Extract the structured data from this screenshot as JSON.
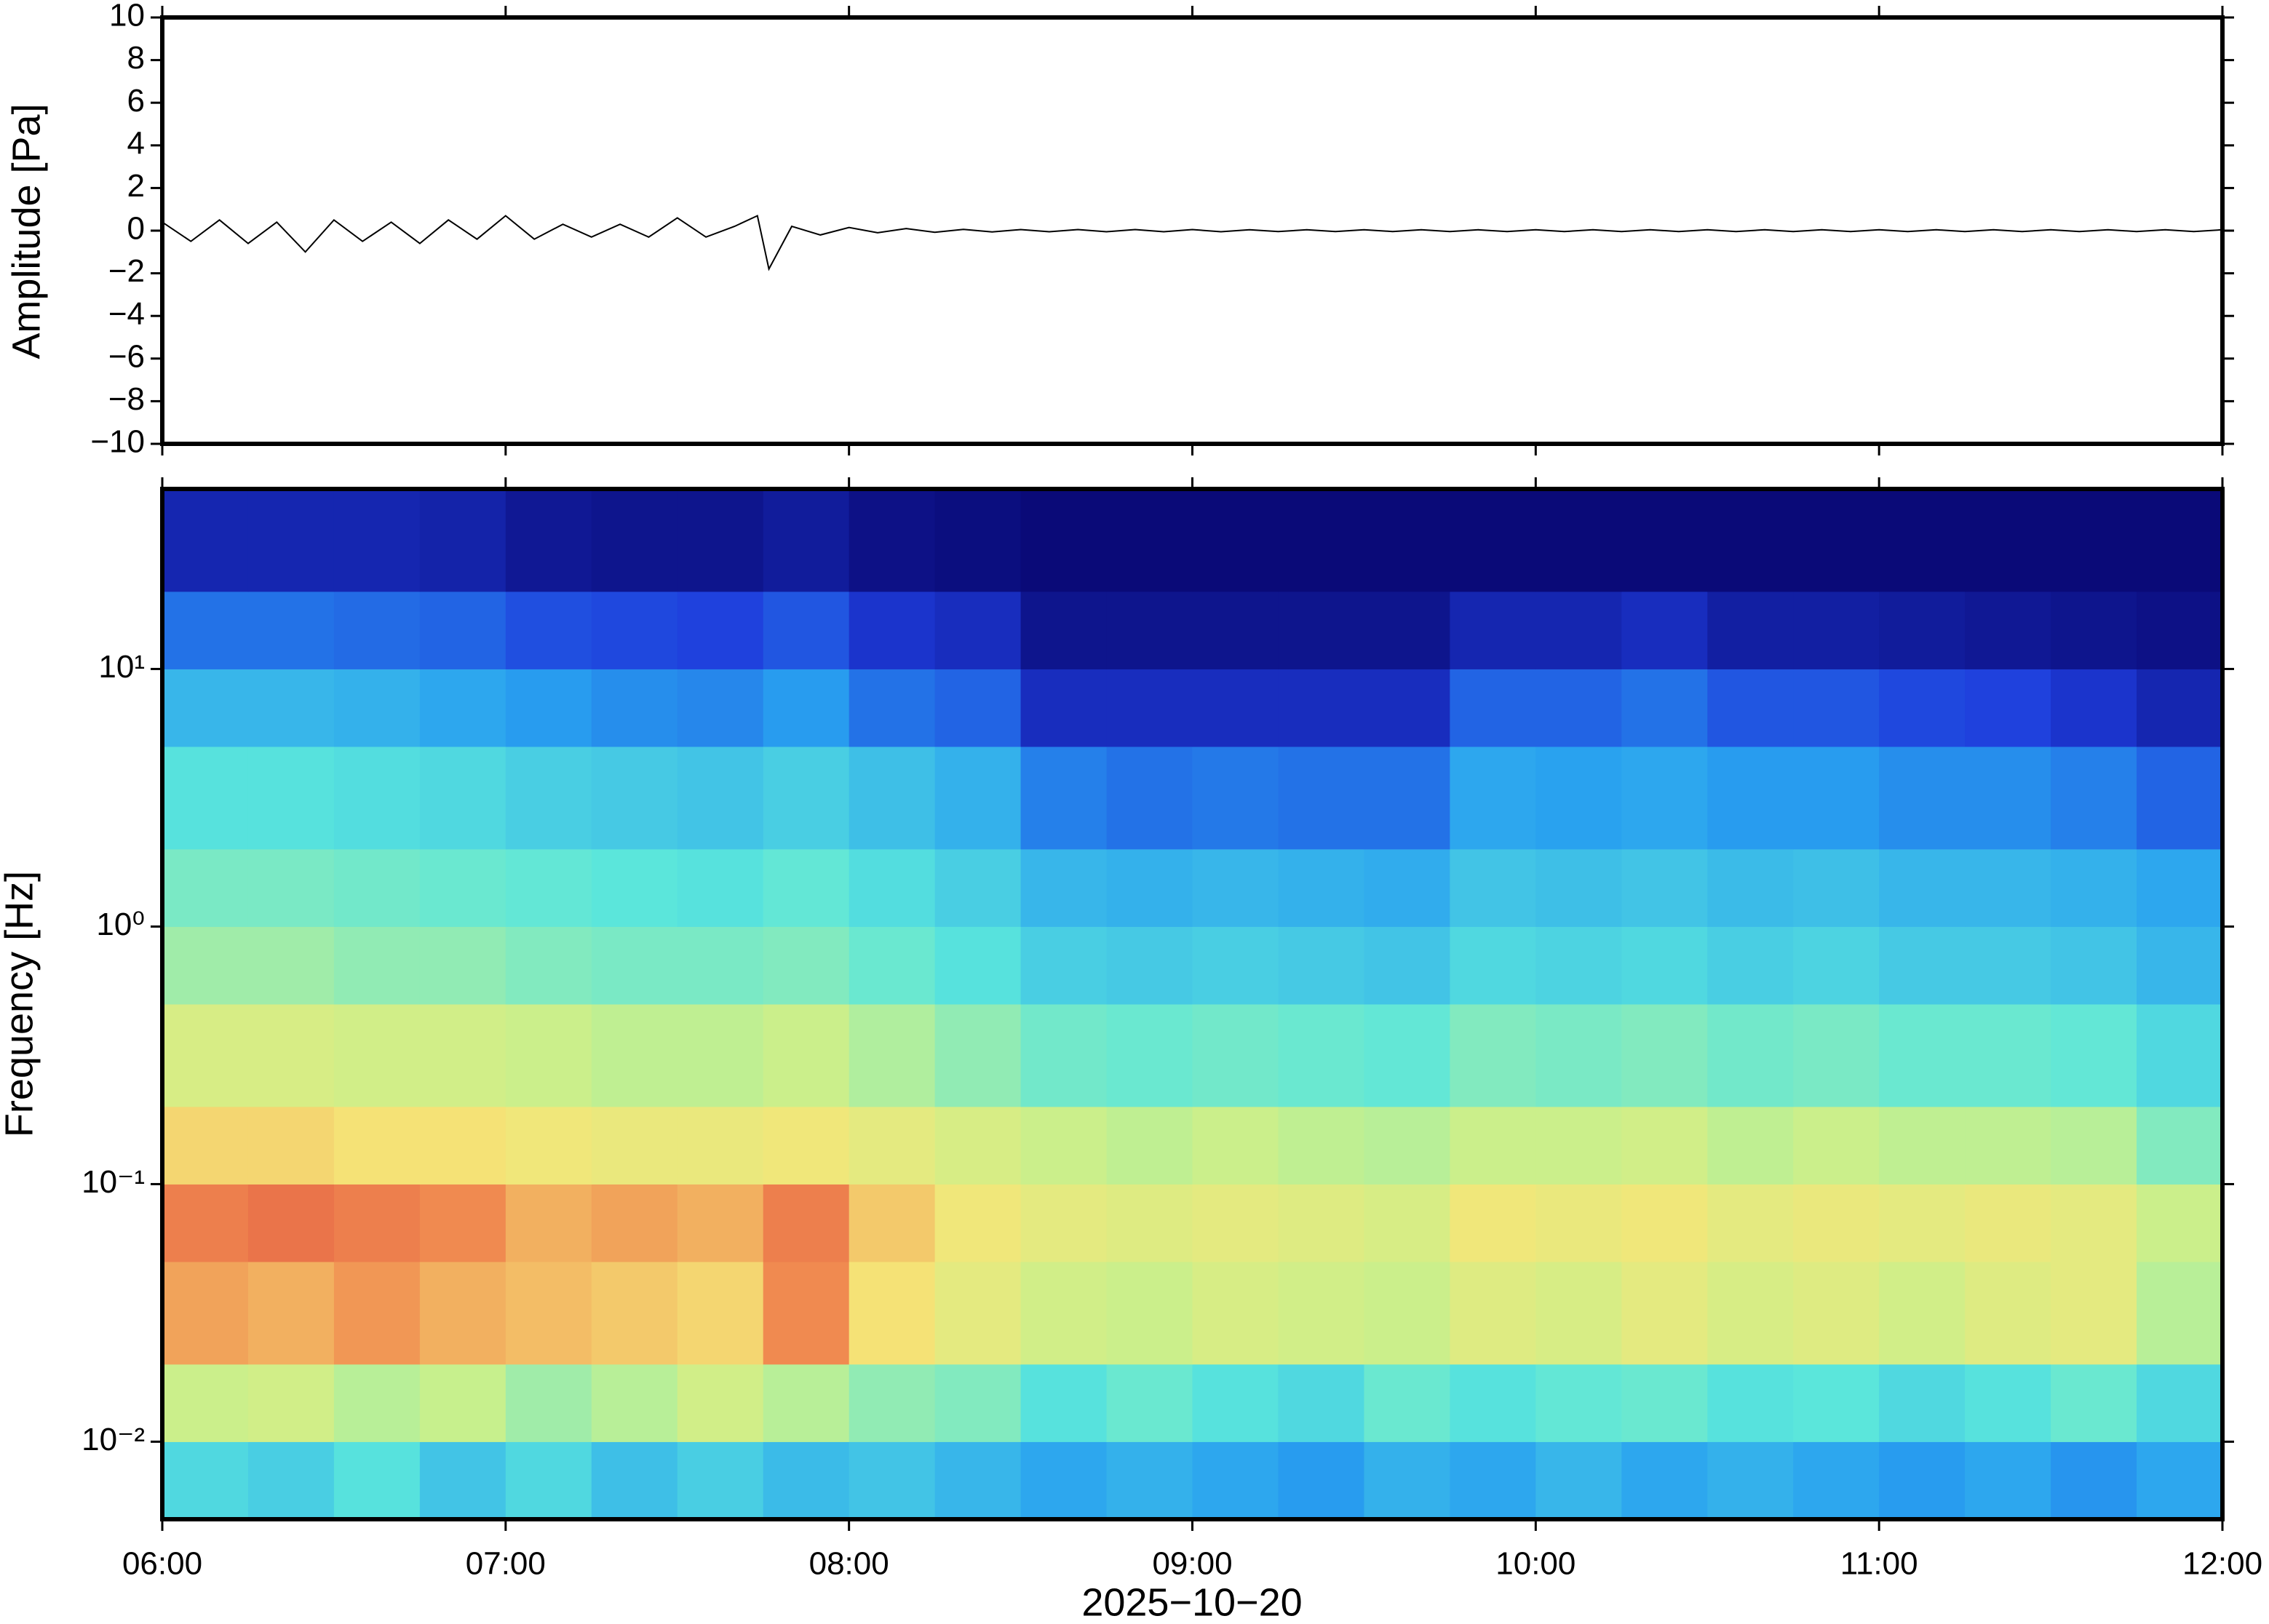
{
  "chart_data": [
    {
      "type": "line",
      "ylabel": "Amplitude [Pa]",
      "color": "#000000",
      "x": [
        0,
        5,
        10,
        15,
        20,
        25,
        30,
        35,
        40,
        45,
        50,
        55,
        60,
        65,
        70,
        75,
        80,
        85,
        90,
        95,
        100,
        104,
        106,
        110,
        115,
        120,
        125,
        130,
        135,
        140,
        145,
        150,
        155,
        160,
        165,
        170,
        175,
        180,
        185,
        190,
        195,
        200,
        205,
        210,
        215,
        220,
        225,
        230,
        235,
        240,
        245,
        250,
        255,
        260,
        265,
        270,
        275,
        280,
        285,
        290,
        295,
        300,
        305,
        310,
        315,
        320,
        325,
        330,
        335,
        340,
        345,
        350,
        355,
        360
      ],
      "values": [
        0.4,
        -0.5,
        0.5,
        -0.6,
        0.4,
        -1.0,
        0.5,
        -0.5,
        0.4,
        -0.6,
        0.5,
        -0.4,
        0.7,
        -0.4,
        0.3,
        -0.3,
        0.3,
        -0.3,
        0.6,
        -0.3,
        0.2,
        0.7,
        -1.8,
        0.2,
        -0.2,
        0.15,
        -0.1,
        0.1,
        -0.08,
        0.06,
        -0.06,
        0.05,
        -0.05,
        0.05,
        -0.05,
        0.05,
        -0.05,
        0.05,
        -0.05,
        0.04,
        -0.04,
        0.04,
        -0.04,
        0.04,
        -0.04,
        0.04,
        -0.04,
        0.04,
        -0.04,
        0.04,
        -0.04,
        0.04,
        -0.04,
        0.04,
        -0.04,
        0.04,
        -0.04,
        0.04,
        -0.04,
        0.04,
        -0.04,
        0.04,
        -0.04,
        0.04,
        -0.04,
        0.04,
        -0.04,
        0.04,
        -0.04,
        0.04,
        -0.04,
        0.04,
        -0.04,
        0.04
      ],
      "xlim": [
        0,
        360
      ],
      "ylim": [
        -10,
        10
      ],
      "yticks": [
        {
          "value": -10,
          "label": "−10"
        },
        {
          "value": -8,
          "label": "−8"
        },
        {
          "value": -6,
          "label": "−6"
        },
        {
          "value": -4,
          "label": "−4"
        },
        {
          "value": -2,
          "label": "−2"
        },
        0,
        2,
        4,
        6,
        8,
        10
      ]
    },
    {
      "type": "heatmap",
      "ylabel": "Frequency [Hz]",
      "xlabel": "2025−10−20",
      "log_y": true,
      "colormap": [
        "#0a0a78",
        "#1e3cdc",
        "#28a0f0",
        "#5ae6dc",
        "#c8f08c",
        "#f5e678",
        "#f08c50",
        "#dc3c3c"
      ],
      "zlim": [
        0,
        1
      ],
      "xbins": [
        0,
        15,
        30,
        45,
        60,
        75,
        90,
        105,
        120,
        135,
        150,
        165,
        180,
        195,
        210,
        225,
        240,
        255,
        270,
        285,
        300,
        315,
        330,
        345,
        360
      ],
      "ybins": [
        0.005,
        0.01,
        0.02,
        0.05,
        0.1,
        0.2,
        0.5,
        1,
        2,
        5,
        10,
        20,
        50
      ],
      "z": [
        [
          0.4,
          0.38,
          0.42,
          0.36,
          0.4,
          0.35,
          0.38,
          0.34,
          0.36,
          0.33,
          0.3,
          0.32,
          0.3,
          0.28,
          0.32,
          0.3,
          0.33,
          0.3,
          0.32,
          0.3,
          0.28,
          0.3,
          0.27,
          0.3
        ],
        [
          0.58,
          0.6,
          0.55,
          0.57,
          0.52,
          0.55,
          0.6,
          0.55,
          0.5,
          0.48,
          0.42,
          0.45,
          0.42,
          0.4,
          0.45,
          0.42,
          0.44,
          0.45,
          0.42,
          0.43,
          0.4,
          0.42,
          0.45,
          0.4
        ],
        [
          0.82,
          0.8,
          0.84,
          0.8,
          0.78,
          0.76,
          0.74,
          0.86,
          0.72,
          0.66,
          0.6,
          0.58,
          0.62,
          0.6,
          0.58,
          0.64,
          0.62,
          0.66,
          0.62,
          0.64,
          0.6,
          0.64,
          0.66,
          0.55
        ],
        [
          0.88,
          0.9,
          0.88,
          0.86,
          0.8,
          0.82,
          0.8,
          0.88,
          0.76,
          0.7,
          0.66,
          0.64,
          0.66,
          0.64,
          0.62,
          0.7,
          0.68,
          0.7,
          0.66,
          0.68,
          0.66,
          0.68,
          0.66,
          0.58
        ],
        [
          0.74,
          0.74,
          0.72,
          0.72,
          0.7,
          0.68,
          0.68,
          0.7,
          0.66,
          0.62,
          0.58,
          0.56,
          0.58,
          0.56,
          0.55,
          0.58,
          0.58,
          0.6,
          0.56,
          0.58,
          0.56,
          0.56,
          0.55,
          0.48
        ],
        [
          0.62,
          0.62,
          0.6,
          0.6,
          0.58,
          0.56,
          0.56,
          0.58,
          0.54,
          0.5,
          0.46,
          0.45,
          0.46,
          0.45,
          0.44,
          0.48,
          0.47,
          0.48,
          0.46,
          0.47,
          0.45,
          0.45,
          0.44,
          0.4
        ],
        [
          0.52,
          0.52,
          0.5,
          0.5,
          0.48,
          0.47,
          0.47,
          0.48,
          0.45,
          0.42,
          0.38,
          0.37,
          0.38,
          0.37,
          0.36,
          0.4,
          0.39,
          0.4,
          0.38,
          0.39,
          0.37,
          0.37,
          0.36,
          0.33
        ],
        [
          0.47,
          0.47,
          0.46,
          0.45,
          0.44,
          0.43,
          0.42,
          0.44,
          0.41,
          0.38,
          0.33,
          0.32,
          0.33,
          0.32,
          0.31,
          0.36,
          0.35,
          0.36,
          0.34,
          0.35,
          0.33,
          0.33,
          0.32,
          0.3
        ],
        [
          0.42,
          0.42,
          0.41,
          0.4,
          0.38,
          0.37,
          0.36,
          0.38,
          0.35,
          0.32,
          0.24,
          0.22,
          0.23,
          0.22,
          0.22,
          0.3,
          0.29,
          0.3,
          0.28,
          0.28,
          0.26,
          0.26,
          0.24,
          0.2
        ],
        [
          0.33,
          0.33,
          0.32,
          0.3,
          0.28,
          0.26,
          0.25,
          0.28,
          0.22,
          0.2,
          0.1,
          0.1,
          0.1,
          0.1,
          0.1,
          0.2,
          0.2,
          0.22,
          0.18,
          0.18,
          0.16,
          0.15,
          0.12,
          0.08
        ],
        [
          0.22,
          0.22,
          0.21,
          0.2,
          0.17,
          0.16,
          0.15,
          0.18,
          0.12,
          0.1,
          0.03,
          0.03,
          0.03,
          0.03,
          0.03,
          0.08,
          0.08,
          0.1,
          0.06,
          0.06,
          0.05,
          0.04,
          0.03,
          0.02
        ],
        [
          0.08,
          0.08,
          0.08,
          0.07,
          0.04,
          0.03,
          0.03,
          0.05,
          0.02,
          0.01,
          0,
          0,
          0,
          0,
          0,
          0,
          0,
          0,
          0,
          0,
          0,
          0,
          0,
          0
        ]
      ],
      "xlim": [
        0,
        360
      ],
      "ylim": [
        0.005,
        50
      ],
      "xticks": [
        {
          "value": 0,
          "label": "06:00"
        },
        {
          "value": 60,
          "label": "07:00"
        },
        {
          "value": 120,
          "label": "08:00"
        },
        {
          "value": 180,
          "label": "09:00"
        },
        {
          "value": 240,
          "label": "10:00"
        },
        {
          "value": 300,
          "label": "11:00"
        },
        {
          "value": 360,
          "label": "12:00"
        }
      ],
      "yticks": [
        {
          "value": 0.01,
          "label": "10⁻²"
        },
        {
          "value": 0.1,
          "label": "10⁻¹"
        },
        {
          "value": 1,
          "label": "10⁰"
        },
        {
          "value": 10,
          "label": "10¹"
        }
      ]
    }
  ]
}
